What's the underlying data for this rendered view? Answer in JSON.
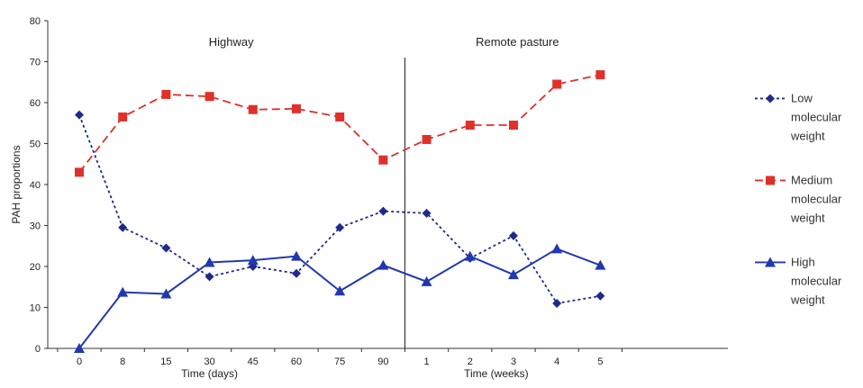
{
  "chart_data": {
    "type": "line",
    "ylabel": "PAH proportions",
    "ylim": [
      0,
      80
    ],
    "yticks": [
      0,
      10,
      20,
      30,
      40,
      50,
      60,
      70,
      80
    ],
    "categories": [
      "0",
      "8",
      "15",
      "30",
      "45",
      "60",
      "75",
      "90",
      "1",
      "2",
      "3",
      "4",
      "5"
    ],
    "groups": [
      {
        "label": "Time (days)",
        "annotation": "Highway",
        "categories": [
          "0",
          "8",
          "15",
          "30",
          "45",
          "60",
          "75",
          "90"
        ]
      },
      {
        "label": "Time (weeks)",
        "annotation": "Remote pasture",
        "categories": [
          "1",
          "2",
          "3",
          "4",
          "5"
        ]
      }
    ],
    "grid": false,
    "legend_position": "right",
    "series": [
      {
        "name": "Low molecular weight",
        "name_lines": [
          "Low",
          "molecular",
          "weight"
        ],
        "color": "#1f2a8a",
        "line_style": "dotted",
        "marker": "diamond",
        "values": [
          57,
          29.5,
          24.5,
          17.5,
          20,
          18.3,
          29.5,
          33.5,
          33,
          22,
          27.5,
          11,
          12.8
        ]
      },
      {
        "name": "Medium molecular weight",
        "name_lines": [
          "Medium",
          "molecular",
          "weight"
        ],
        "color": "#e0302a",
        "line_style": "dashed",
        "marker": "square",
        "values": [
          43,
          56.5,
          62,
          61.5,
          58.3,
          58.5,
          56.5,
          46,
          51,
          54.5,
          54.5,
          64.5,
          66.8
        ]
      },
      {
        "name": "High molecular weight",
        "name_lines": [
          "High",
          "molecular",
          "weight"
        ],
        "color": "#2238b0",
        "line_style": "solid",
        "marker": "triangle",
        "values": [
          0,
          13.7,
          13.3,
          21,
          21.5,
          22.5,
          14,
          20.3,
          16.3,
          22.5,
          18,
          24.3,
          20.3
        ]
      }
    ]
  }
}
